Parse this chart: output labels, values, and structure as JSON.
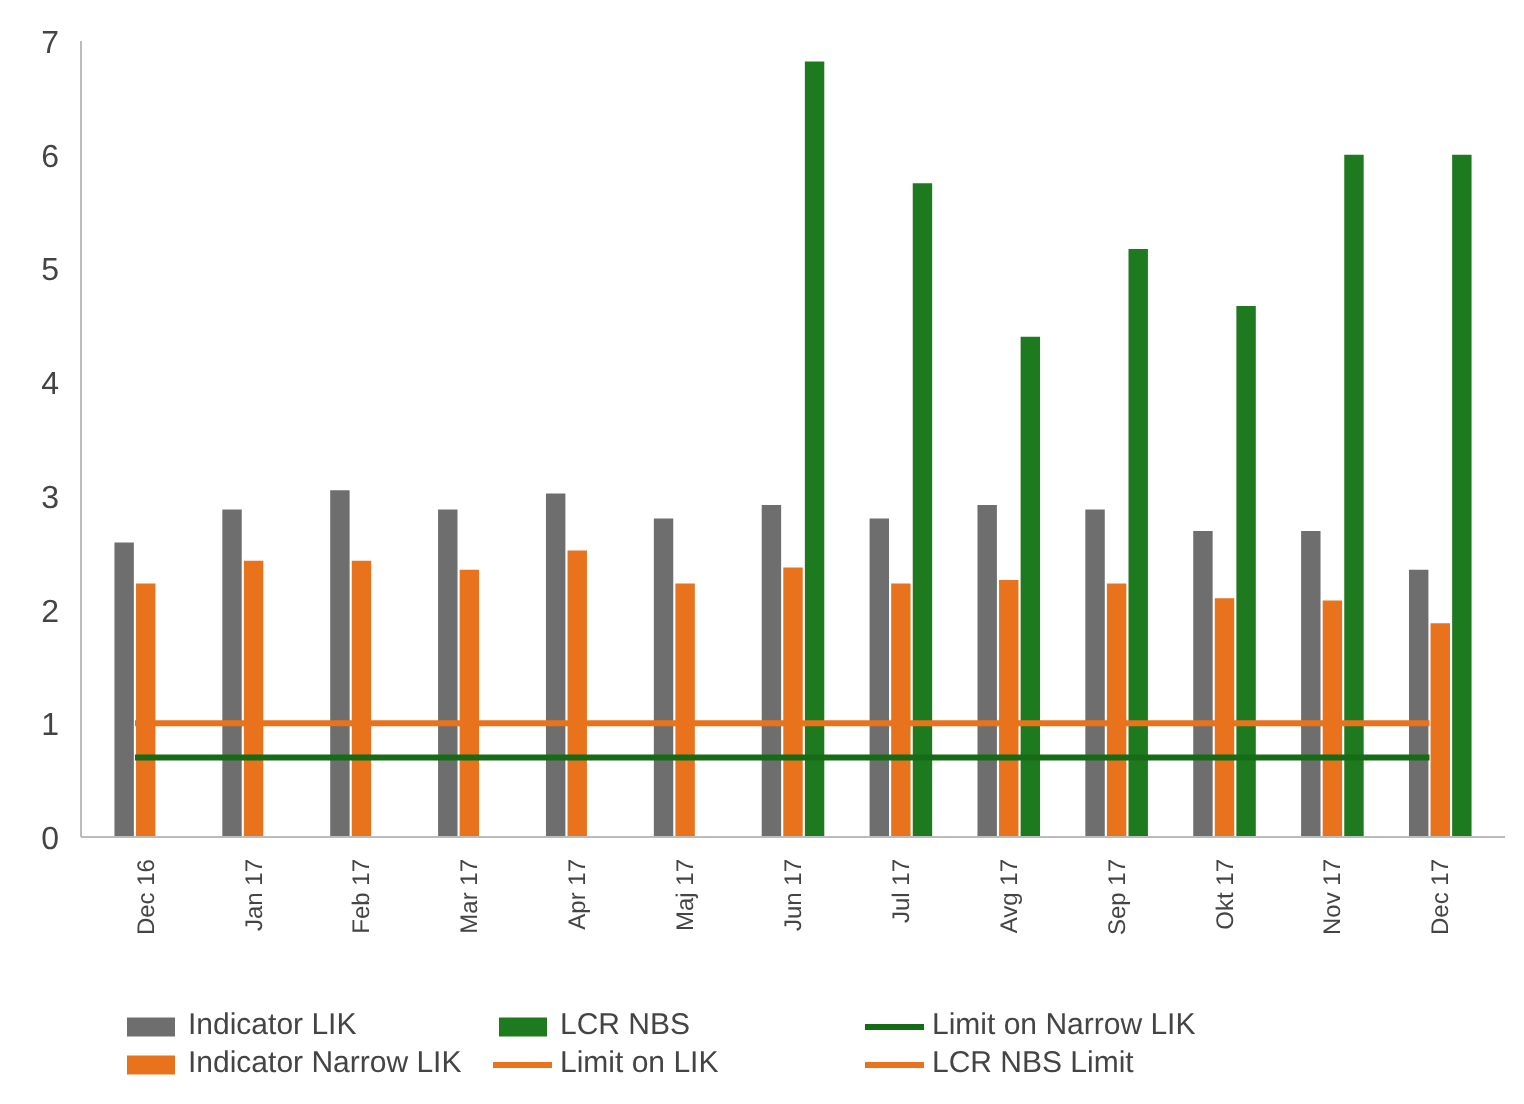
{
  "chart_data": {
    "type": "bar",
    "categories": [
      "Dec 16",
      "Jan 17",
      "Feb 17",
      "Mar 17",
      "Apr 17",
      "Maj 17",
      "Jun 17",
      "Jul 17",
      "Avg 17",
      "Sep 17",
      "Okt 17",
      "Nov 17",
      "Dec 17"
    ],
    "series": [
      {
        "name": "Indicator LIK",
        "color": "#6e6e6e",
        "values": [
          2.59,
          2.88,
          3.05,
          2.88,
          3.02,
          2.8,
          2.92,
          2.8,
          2.92,
          2.88,
          2.69,
          2.69,
          2.35
        ]
      },
      {
        "name": "Indicator Narrow LIK",
        "color": "#e8731c",
        "values": [
          2.23,
          2.43,
          2.43,
          2.35,
          2.52,
          2.23,
          2.37,
          2.23,
          2.26,
          2.23,
          2.1,
          2.08,
          1.88
        ]
      },
      {
        "name": "LCR NBS",
        "color": "#1e7a1e",
        "values": [
          null,
          null,
          null,
          null,
          null,
          null,
          6.82,
          5.75,
          4.4,
          5.17,
          4.67,
          6.0,
          6.0
        ]
      },
      {
        "name": "Limit on LIK",
        "type": "line",
        "color": "#e8731c",
        "values": [
          1,
          1,
          1,
          1,
          1,
          1,
          1,
          1,
          1,
          1,
          1,
          1,
          1
        ]
      },
      {
        "name": "Limit on Narrow LIK",
        "type": "line",
        "color": "#166b16",
        "values": [
          0.7,
          0.7,
          0.7,
          0.7,
          0.7,
          0.7,
          0.7,
          0.7,
          0.7,
          0.7,
          0.7,
          0.7,
          0.7
        ]
      },
      {
        "name": "LCR NBS Limit",
        "type": "line",
        "color": "#e8731c",
        "values": [
          null,
          null,
          null,
          null,
          null,
          null,
          null,
          null,
          null,
          null,
          null,
          null,
          null
        ]
      }
    ],
    "ylim": [
      0,
      7
    ],
    "yticks": [
      0,
      1,
      2,
      3,
      4,
      5,
      6,
      7
    ],
    "grid": false,
    "legend": "bottom",
    "line_style": "solid"
  }
}
